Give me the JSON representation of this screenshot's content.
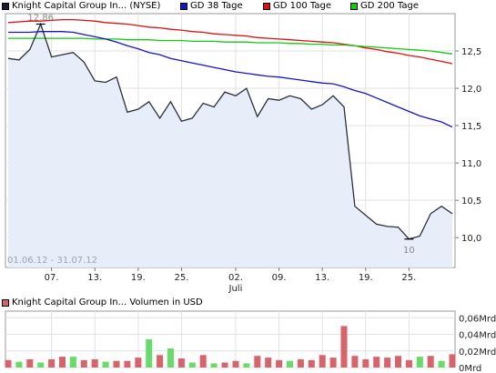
{
  "legend": {
    "items": [
      {
        "label": "Knight Capital Group In... (NYSE)",
        "color": "#1a1a2e"
      },
      {
        "label": "GD 38 Tage",
        "color": "#1515cc"
      },
      {
        "label": "GD 100 Tage",
        "color": "#dd1111"
      },
      {
        "label": "GD 200 Tage",
        "color": "#11cc11"
      }
    ]
  },
  "volume_legend": {
    "label": "Knight Capital Group In... Volumen in USD",
    "color": "#d9636a"
  },
  "chart_data": [
    {
      "type": "line",
      "date_range_label": "01.06.12 - 31.07.12",
      "high_annotation": "12,86",
      "low_annotation": "10",
      "x": [
        "01.06.12",
        "04.06.12",
        "05.06.12",
        "06.06.12",
        "07.06.12",
        "08.06.12",
        "11.06.12",
        "12.06.12",
        "13.06.12",
        "14.06.12",
        "15.06.12",
        "18.06.12",
        "19.06.12",
        "20.06.12",
        "21.06.12",
        "22.06.12",
        "25.06.12",
        "26.06.12",
        "27.06.12",
        "28.06.12",
        "29.06.12",
        "02.07.12",
        "03.07.12",
        "05.07.12",
        "06.07.12",
        "09.07.12",
        "10.07.12",
        "11.07.12",
        "12.07.12",
        "13.07.12",
        "16.07.12",
        "17.07.12",
        "18.07.12",
        "19.07.12",
        "20.07.12",
        "23.07.12",
        "24.07.12",
        "25.07.12",
        "26.07.12",
        "27.07.12",
        "30.07.12",
        "31.07.12"
      ],
      "x_tick_labels": [
        "07.",
        "13.",
        "19.",
        "25.",
        "02.",
        "09.",
        "13.",
        "19.",
        "25."
      ],
      "x_secondary_label": "Juli",
      "y_ticks": [
        "12,5",
        "12,0",
        "11,5",
        "11,0",
        "10,5",
        "10,0"
      ],
      "ylim": [
        9.6,
        13.0
      ],
      "series": [
        {
          "name": "Knight Capital Group In... (NYSE)",
          "color": "#2b2f3a",
          "values": [
            12.4,
            12.38,
            12.52,
            12.86,
            12.42,
            12.45,
            12.48,
            12.35,
            12.1,
            12.08,
            12.15,
            11.68,
            11.72,
            11.82,
            11.6,
            11.82,
            11.56,
            11.6,
            11.8,
            11.75,
            11.95,
            11.9,
            12.0,
            11.62,
            11.86,
            11.84,
            11.9,
            11.86,
            11.72,
            11.78,
            11.9,
            11.75,
            10.42,
            10.3,
            10.18,
            10.15,
            10.14,
            9.98,
            10.02,
            10.32,
            10.42,
            10.32
          ]
        },
        {
          "name": "GD 38 Tage",
          "color": "#1515cc",
          "values": [
            12.75,
            12.75,
            12.75,
            12.76,
            12.76,
            12.76,
            12.75,
            12.72,
            12.69,
            12.66,
            12.62,
            12.57,
            12.53,
            12.48,
            12.45,
            12.4,
            12.37,
            12.34,
            12.31,
            12.28,
            12.25,
            12.22,
            12.2,
            12.18,
            12.16,
            12.15,
            12.13,
            12.11,
            12.09,
            12.07,
            12.06,
            12.02,
            11.97,
            11.93,
            11.87,
            11.81,
            11.75,
            11.69,
            11.63,
            11.59,
            11.55,
            11.48
          ]
        },
        {
          "name": "GD 100 Tage",
          "color": "#dd1111",
          "values": [
            12.88,
            12.89,
            12.9,
            12.9,
            12.91,
            12.92,
            12.92,
            12.91,
            12.9,
            12.88,
            12.87,
            12.86,
            12.84,
            12.82,
            12.81,
            12.79,
            12.78,
            12.76,
            12.75,
            12.73,
            12.72,
            12.71,
            12.7,
            12.68,
            12.67,
            12.66,
            12.65,
            12.64,
            12.63,
            12.62,
            12.61,
            12.59,
            12.57,
            12.54,
            12.52,
            12.49,
            12.47,
            12.44,
            12.42,
            12.39,
            12.36,
            12.33
          ]
        },
        {
          "name": "GD 200 Tage",
          "color": "#11cc11",
          "values": [
            12.67,
            12.67,
            12.67,
            12.67,
            12.67,
            12.67,
            12.67,
            12.67,
            12.66,
            12.66,
            12.66,
            12.65,
            12.65,
            12.65,
            12.64,
            12.64,
            12.64,
            12.63,
            12.63,
            12.63,
            12.62,
            12.62,
            12.62,
            12.61,
            12.61,
            12.61,
            12.6,
            12.6,
            12.59,
            12.59,
            12.58,
            12.58,
            12.57,
            12.56,
            12.55,
            12.54,
            12.53,
            12.52,
            12.51,
            12.5,
            12.48,
            12.46
          ]
        }
      ]
    },
    {
      "type": "bar",
      "y_ticks": [
        "0,06Mrd",
        "0,04Mrd",
        "0,02Mrd",
        "0Mrd"
      ],
      "ylim": [
        0,
        0.068
      ],
      "up_color": "#66dd66",
      "down_color": "#d9636a",
      "values": [
        0.009,
        0.007,
        0.01,
        0.006,
        0.01,
        0.013,
        0.013,
        0.009,
        0.01,
        0.007,
        0.008,
        0.008,
        0.012,
        0.034,
        0.015,
        0.023,
        0.011,
        0.006,
        0.015,
        0.005,
        0.006,
        0.008,
        0.005,
        0.014,
        0.012,
        0.009,
        0.008,
        0.01,
        0.009,
        0.015,
        0.012,
        0.05,
        0.014,
        0.01,
        0.013,
        0.012,
        0.014,
        0.009,
        0.013,
        0.014,
        0.008,
        0.016
      ],
      "up": [
        false,
        true,
        false,
        true,
        false,
        false,
        true,
        false,
        false,
        true,
        false,
        false,
        false,
        true,
        false,
        true,
        false,
        true,
        false,
        true,
        false,
        false,
        true,
        false,
        false,
        false,
        true,
        false,
        false,
        false,
        false,
        false,
        false,
        false,
        false,
        false,
        false,
        false,
        true,
        false,
        true,
        false
      ]
    }
  ]
}
